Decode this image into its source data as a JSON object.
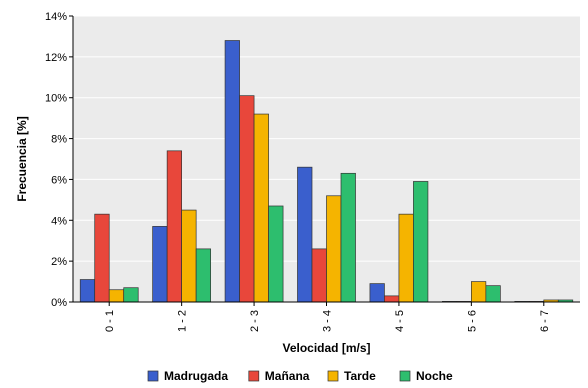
{
  "chart_data": {
    "type": "bar",
    "title": "",
    "xlabel": "Velocidad [m/s]",
    "ylabel": "Frecuencia [%]",
    "ylim": [
      0,
      14
    ],
    "ytick_values": [
      0,
      2,
      4,
      6,
      8,
      10,
      12,
      14
    ],
    "ytick_labels": [
      "0%",
      "2%",
      "4%",
      "6%",
      "8%",
      "10%",
      "12%",
      "14%"
    ],
    "categories": [
      "0 - 1",
      "1 - 2",
      "2 - 3",
      "3 - 4",
      "4 - 5",
      "5 - 6",
      "6 - 7"
    ],
    "grid": true,
    "legend_position": "bottom",
    "plot_background": "#ebebeb",
    "series": [
      {
        "name": "Madrugada",
        "color": "#3a5fcd",
        "values": [
          1.1,
          3.7,
          12.8,
          6.6,
          0.9,
          0.02,
          0.02
        ]
      },
      {
        "name": "Mañana",
        "color": "#e8473b",
        "values": [
          4.3,
          7.4,
          10.1,
          2.6,
          0.3,
          0.0,
          0.0
        ]
      },
      {
        "name": "Tarde",
        "color": "#f5b400",
        "values": [
          0.6,
          4.5,
          9.2,
          5.2,
          4.3,
          1.0,
          0.1
        ]
      },
      {
        "name": "Noche",
        "color": "#2dbe6e",
        "values": [
          0.7,
          2.6,
          4.7,
          6.3,
          5.9,
          0.8,
          0.1
        ]
      }
    ]
  }
}
